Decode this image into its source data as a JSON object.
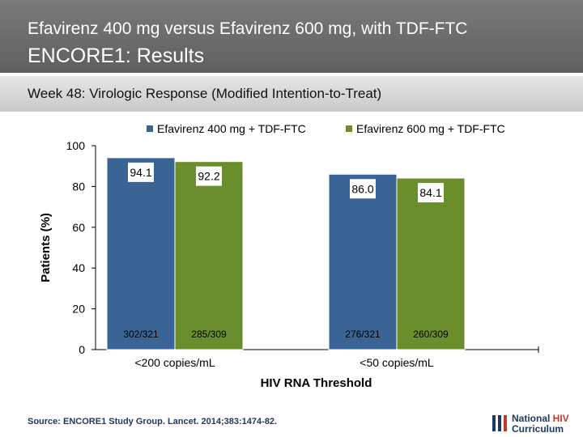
{
  "header": {
    "title_line1": "Efavirenz 400 mg versus Efavirenz 600 mg, with TDF-FTC",
    "title_line2": "ENCORE1: Results"
  },
  "subtitle": "Week 48: Virologic Response (Modified Intention-to-Treat)",
  "colors": {
    "series1": "#3a6496",
    "series2": "#6b8e2c"
  },
  "chart_data": {
    "type": "bar",
    "title": "",
    "xlabel": "HIV RNA Threshold",
    "ylabel": "Patients (%)",
    "ylim": [
      0,
      100
    ],
    "yticks": [
      0,
      20,
      40,
      60,
      80,
      100
    ],
    "legend_position": "top-right",
    "categories": [
      "<200 copies/mL",
      "<50 copies/mL"
    ],
    "series": [
      {
        "name": "Efavirenz 400 mg + TDF-FTC",
        "values": [
          94.1,
          86.0
        ],
        "value_labels": [
          "94.1",
          "86.0"
        ],
        "counts": [
          "302/321",
          "276/321"
        ]
      },
      {
        "name": "Efavirenz 600 mg + TDF-FTC",
        "values": [
          92.2,
          84.1
        ],
        "value_labels": [
          "92.2",
          "84.1"
        ],
        "counts": [
          "285/309",
          "260/309"
        ]
      }
    ]
  },
  "source": "Source: ENCORE1 Study Group. Lancet. 2014;383:1474-82.",
  "logo": {
    "line1_a": "National ",
    "line1_b": "HIV",
    "line2": "Curriculum"
  }
}
